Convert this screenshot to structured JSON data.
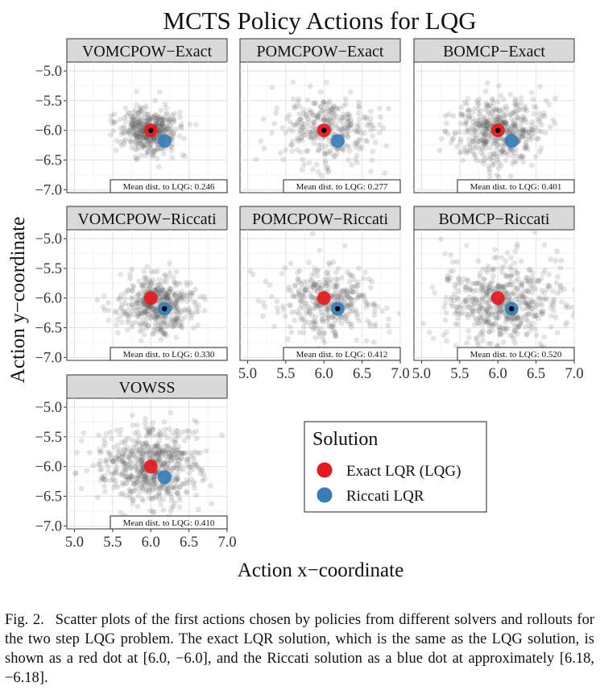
{
  "chart_data": {
    "type": "scatter",
    "title": "MCTS Policy Actions for LQG",
    "xlabel": "Action x−coordinate",
    "ylabel": "Action y−coordinate",
    "xlim": [
      4.9,
      7.0
    ],
    "ylim": [
      -7.05,
      -4.85
    ],
    "x_ticks": [
      "5.0",
      "5.5",
      "6.0",
      "6.5",
      "7.0"
    ],
    "y_ticks": [
      "−5.0",
      "−5.5",
      "−6.0",
      "−6.5",
      "−7.0"
    ],
    "x_tick_values": [
      5.0,
      5.5,
      6.0,
      6.5,
      7.0
    ],
    "y_tick_values": [
      -5.0,
      -5.5,
      -6.0,
      -6.5,
      -7.0
    ],
    "grid": true,
    "legend": {
      "title": "Solution",
      "items": [
        {
          "label": "Exact LQR (LQG)",
          "color": "#e41a1c"
        },
        {
          "label": "Riccati LQR",
          "color": "#377eb8"
        }
      ]
    },
    "reference_points": {
      "exact": {
        "x": 6.0,
        "y": -6.0,
        "color": "#e41a1c"
      },
      "riccati": {
        "x": 6.18,
        "y": -6.18,
        "color": "#377eb8"
      }
    },
    "stat_prefix": "Mean dist. to LQG:",
    "panels": [
      {
        "id": "vomcpow-exact",
        "title": "VOMCPOW−Exact",
        "stat": "0.246",
        "mean": [
          5.99,
          -6.0
        ],
        "spread": 0.2,
        "n": 420,
        "marker": "exact"
      },
      {
        "id": "pomcpow-exact",
        "title": "POMCPOW−Exact",
        "stat": "0.277",
        "mean": [
          6.0,
          -6.0
        ],
        "spread": 0.32,
        "n": 330,
        "marker": "exact"
      },
      {
        "id": "bomcp-exact",
        "title": "BOMCP−Exact",
        "stat": "0.401",
        "mean": [
          6.0,
          -6.0
        ],
        "spread": 0.3,
        "n": 480,
        "marker": "exact"
      },
      {
        "id": "vomcpow-riccati",
        "title": "VOMCPOW−Riccati",
        "stat": "0.330",
        "mean": [
          6.1,
          -6.12
        ],
        "spread": 0.25,
        "n": 470,
        "marker": "riccati"
      },
      {
        "id": "pomcpow-riccati",
        "title": "POMCPOW−Riccati",
        "stat": "0.412",
        "mean": [
          6.05,
          -6.05
        ],
        "spread": 0.34,
        "n": 380,
        "marker": "riccati"
      },
      {
        "id": "bomcp-riccati",
        "title": "BOMCP−Riccati",
        "stat": "0.520",
        "mean": [
          6.05,
          -6.08
        ],
        "spread": 0.38,
        "n": 560,
        "marker": "riccati"
      },
      {
        "id": "vowss",
        "title": "VOWSS",
        "stat": "0.410",
        "mean": [
          5.98,
          -6.0
        ],
        "spread": 0.34,
        "n": 620,
        "marker": "none"
      }
    ]
  },
  "caption": {
    "label": "Fig. 2.",
    "text": "Scatter plots of the first actions chosen by policies from different solvers and rollouts for the two step LQG problem. The exact LQR solution, which is the same as the LQG solution, is shown as a red dot at [6.0, −6.0], and the Riccati solution as a blue dot at approximately [6.18, −6.18]."
  }
}
